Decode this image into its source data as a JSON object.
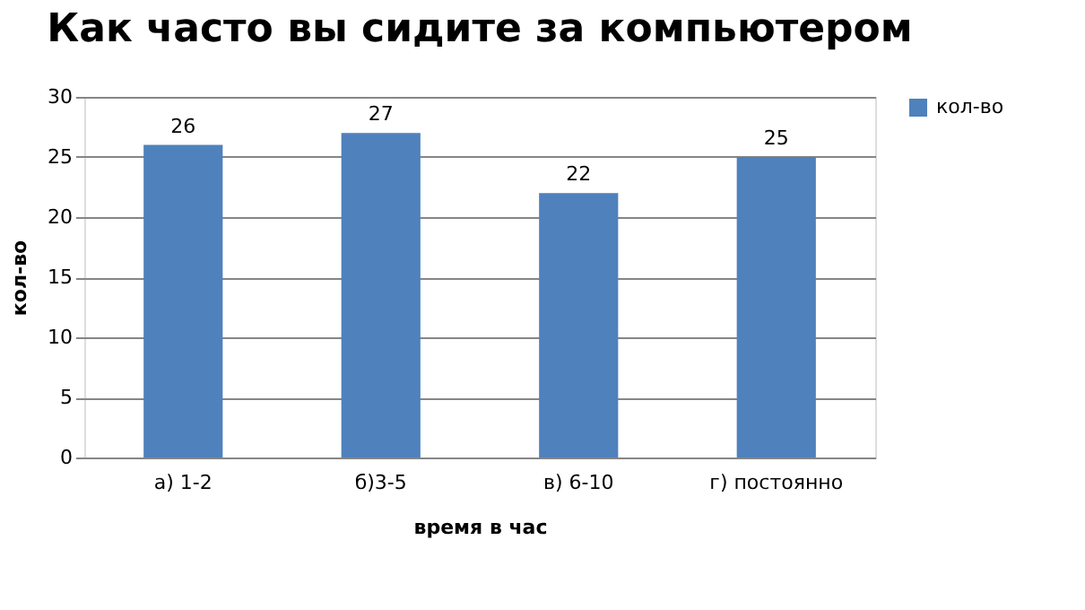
{
  "chart_data": {
    "type": "bar",
    "title": "Как часто вы сидите за компьютером",
    "xlabel": "время в час",
    "ylabel": "кол-во",
    "categories": [
      "а) 1-2",
      "б)3-5",
      "в) 6-10",
      "г) постоянно"
    ],
    "series": [
      {
        "name": "кол-во",
        "color": "#4f81bd",
        "values": [
          26,
          27,
          22,
          25
        ]
      }
    ],
    "ylim": [
      0,
      30
    ],
    "yticks": [
      0,
      5,
      10,
      15,
      20,
      25,
      30
    ],
    "grid": "y",
    "legend": "right",
    "data_labels": true
  }
}
